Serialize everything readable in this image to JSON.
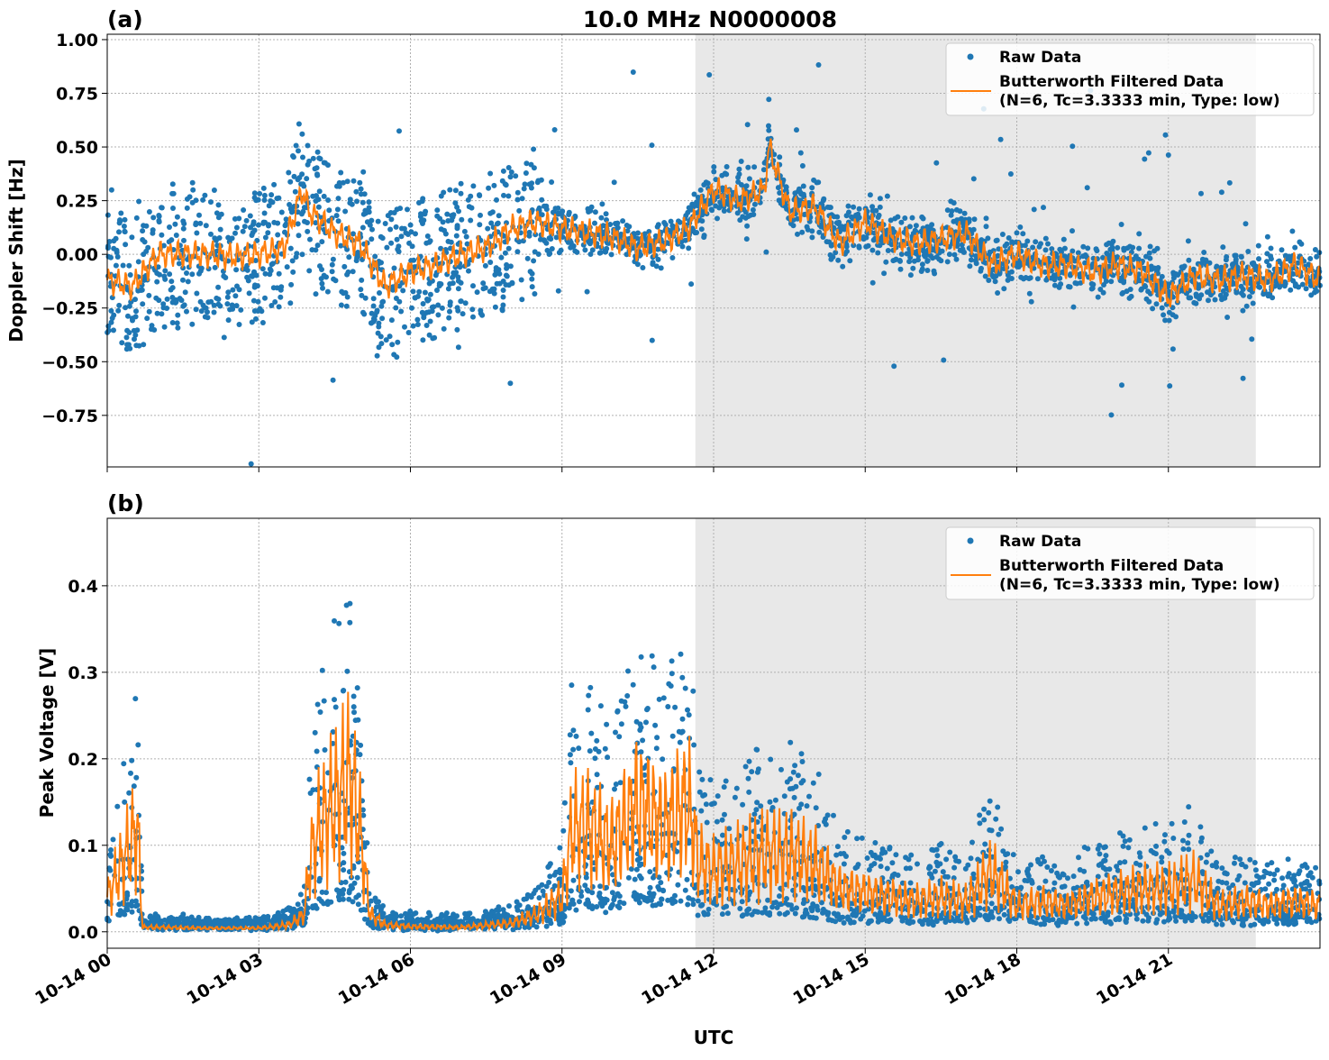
{
  "title": "10.0 MHz N0000008",
  "colors": {
    "raw": "#1f77b4",
    "filtered": "#ff7f0e",
    "shade": "#e8e8e8",
    "grid": "#b0b0b0"
  },
  "legend": {
    "raw": "Raw Data",
    "filtered_line1": "Butterworth Filtered Data",
    "filtered_line2": "(N=6, Tc=3.3333 min, Type: low)",
    "placement": "upper-right"
  },
  "xaxis": {
    "label": "UTC",
    "range_hours": [
      0,
      24
    ],
    "ticks": [
      {
        "hour": 0,
        "label": "10-14 00"
      },
      {
        "hour": 3,
        "label": "10-14 03"
      },
      {
        "hour": 6,
        "label": "10-14 06"
      },
      {
        "hour": 9,
        "label": "10-14 09"
      },
      {
        "hour": 12,
        "label": "10-14 12"
      },
      {
        "hour": 15,
        "label": "10-14 15"
      },
      {
        "hour": 18,
        "label": "10-14 18"
      },
      {
        "hour": 21,
        "label": "10-14 21"
      }
    ]
  },
  "chart_data": [
    {
      "panel": "(a)",
      "type": "scatter",
      "ylabel": "Doppler Shift [Hz]",
      "ylim": [
        -0.99,
        1.025
      ],
      "grid": true,
      "shaded_span_hours": [
        11.64,
        22.73
      ],
      "yticks": [
        {
          "v": 1.0,
          "label": "1.00"
        },
        {
          "v": 0.75,
          "label": "0.75"
        },
        {
          "v": 0.5,
          "label": "0.50"
        },
        {
          "v": 0.25,
          "label": "0.25"
        },
        {
          "v": 0.0,
          "label": "0.00"
        },
        {
          "v": -0.25,
          "label": "−0.25"
        },
        {
          "v": -0.5,
          "label": "−0.50"
        },
        {
          "v": -0.75,
          "label": "−0.75"
        }
      ],
      "filtered": {
        "x_hours": [
          0,
          0.5,
          1,
          1.5,
          2,
          2.5,
          3,
          3.5,
          3.85,
          4,
          4.5,
          5,
          5.5,
          6,
          6.5,
          7,
          7.5,
          8,
          8.5,
          9,
          9.5,
          10,
          10.5,
          11,
          11.5,
          12,
          12.5,
          13,
          13.1,
          13.5,
          14,
          14.5,
          15,
          15.5,
          16,
          16.5,
          17,
          17.5,
          18,
          18.5,
          19,
          19.5,
          20,
          20.5,
          21,
          21.5,
          22,
          22.5,
          23,
          23.5,
          24
        ],
        "y": [
          -0.12,
          -0.15,
          0.0,
          0.0,
          0.0,
          -0.01,
          0.0,
          0.03,
          0.3,
          0.2,
          0.1,
          0.05,
          -0.15,
          -0.08,
          -0.05,
          0.0,
          0.03,
          0.12,
          0.15,
          0.12,
          0.1,
          0.08,
          0.03,
          0.06,
          0.12,
          0.3,
          0.25,
          0.3,
          0.5,
          0.2,
          0.22,
          0.05,
          0.15,
          0.08,
          0.05,
          0.07,
          0.1,
          -0.05,
          0.0,
          -0.05,
          -0.05,
          -0.08,
          -0.05,
          -0.08,
          -0.2,
          -0.1,
          -0.12,
          -0.1,
          -0.12,
          -0.05,
          -0.12
        ]
      },
      "raw_spread": {
        "x_hours": [
          0,
          8.5,
          9,
          11.5,
          12,
          24
        ],
        "y": [
          0.25,
          0.25,
          0.1,
          0.1,
          0.13,
          0.12
        ]
      }
    },
    {
      "panel": "(b)",
      "type": "scatter",
      "ylabel": "Peak Voltage [V]",
      "ylim": [
        -0.019,
        0.478
      ],
      "grid": true,
      "shaded_span_hours": [
        11.64,
        22.73
      ],
      "yticks": [
        {
          "v": 0.0,
          "label": "0.0"
        },
        {
          "v": 0.1,
          "label": "0.1"
        },
        {
          "v": 0.2,
          "label": "0.2"
        },
        {
          "v": 0.3,
          "label": "0.3"
        },
        {
          "v": 0.4,
          "label": "0.4"
        }
      ],
      "filtered": {
        "x_hours": [
          0,
          0.3,
          0.6,
          0.7,
          1,
          2,
          3,
          3.6,
          3.9,
          4.0,
          4.2,
          4.5,
          4.8,
          5.0,
          5.2,
          5.5,
          6,
          7,
          8,
          8.5,
          9,
          9.2,
          9.5,
          10,
          10.5,
          11,
          11.5,
          11.7,
          12,
          12.5,
          13,
          13.5,
          14,
          14.5,
          15,
          15.5,
          16,
          16.5,
          17,
          17.5,
          18,
          18.5,
          19,
          19.5,
          20,
          20.5,
          21,
          21.5,
          22,
          22.5,
          23,
          23.5,
          24
        ],
        "y": [
          0.04,
          0.08,
          0.12,
          0.005,
          0.005,
          0.004,
          0.004,
          0.008,
          0.02,
          0.08,
          0.12,
          0.15,
          0.18,
          0.12,
          0.02,
          0.008,
          0.006,
          0.005,
          0.01,
          0.02,
          0.04,
          0.12,
          0.12,
          0.1,
          0.15,
          0.12,
          0.15,
          0.08,
          0.07,
          0.08,
          0.09,
          0.09,
          0.08,
          0.05,
          0.045,
          0.04,
          0.035,
          0.04,
          0.035,
          0.07,
          0.03,
          0.035,
          0.03,
          0.04,
          0.045,
          0.05,
          0.05,
          0.06,
          0.03,
          0.035,
          0.03,
          0.035,
          0.03
        ]
      }
    }
  ]
}
